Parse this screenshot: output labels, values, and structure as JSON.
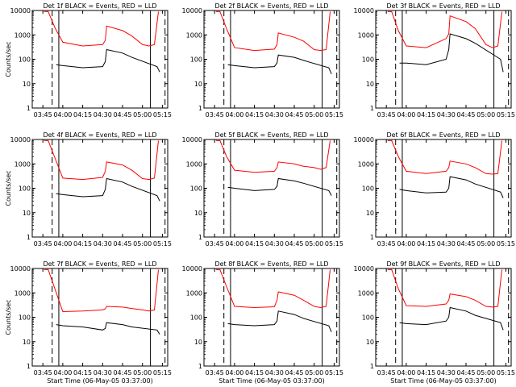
{
  "chart_data": [
    {
      "type": "line",
      "title": "Det 1f BLACK = Events, RED = LLD",
      "xlabel": "",
      "ylabel": "Counts/sec",
      "yscale": "log",
      "ylim": [
        1,
        10000
      ],
      "xtick_labels": [
        "03:45",
        "04:00",
        "04:15",
        "04:30",
        "04:45",
        "05:00",
        "05:15"
      ],
      "series": [
        {
          "color": "#ff0000",
          "x": [
            "03:46",
            "03:49",
            "03:54",
            "04:00",
            "04:15",
            "04:30",
            "04:32",
            "04:33",
            "04:45",
            "04:52",
            "05:00",
            "05:05",
            "05:09",
            "05:12"
          ],
          "y": [
            9000,
            9000,
            2000,
            500,
            350,
            400,
            600,
            2300,
            1500,
            900,
            400,
            350,
            400,
            9000
          ]
        },
        {
          "color": "#000000",
          "x": [
            "03:55",
            "04:00",
            "04:15",
            "04:30",
            "04:32",
            "04:33",
            "04:45",
            "04:52",
            "05:11",
            "05:13"
          ],
          "y": [
            60,
            55,
            45,
            50,
            80,
            250,
            180,
            120,
            50,
            30
          ]
        }
      ]
    },
    {
      "type": "line",
      "title": "Det 2f BLACK = Events, RED = LLD",
      "xlabel": "",
      "ylabel": "",
      "yscale": "log",
      "ylim": [
        1,
        10000
      ],
      "xtick_labels": [
        "03:45",
        "04:00",
        "04:15",
        "04:30",
        "04:45",
        "05:00",
        "05:15"
      ],
      "series": [
        {
          "color": "#ff0000",
          "x": [
            "03:46",
            "03:49",
            "03:54",
            "04:00",
            "04:15",
            "04:30",
            "04:32",
            "04:33",
            "04:45",
            "04:52",
            "05:00",
            "05:05",
            "05:09",
            "05:12"
          ],
          "y": [
            9000,
            9000,
            1800,
            300,
            230,
            260,
            400,
            1200,
            800,
            550,
            250,
            230,
            250,
            9000
          ]
        },
        {
          "color": "#000000",
          "x": [
            "03:55",
            "04:00",
            "04:15",
            "04:30",
            "04:32",
            "04:33",
            "04:45",
            "04:52",
            "05:11",
            "05:13"
          ],
          "y": [
            60,
            55,
            45,
            50,
            70,
            150,
            120,
            90,
            45,
            25
          ]
        }
      ]
    },
    {
      "type": "line",
      "title": "Det 3f BLACK = Events, RED = LLD",
      "xlabel": "",
      "ylabel": "",
      "yscale": "log",
      "ylim": [
        1,
        10000
      ],
      "xtick_labels": [
        "03:45",
        "04:00",
        "04:15",
        "04:30",
        "04:45",
        "05:00",
        "05:15"
      ],
      "series": [
        {
          "color": "#ff0000",
          "x": [
            "03:46",
            "03:49",
            "03:54",
            "04:00",
            "04:15",
            "04:30",
            "04:32",
            "04:33",
            "04:45",
            "04:52",
            "05:00",
            "05:05",
            "05:09",
            "05:12"
          ],
          "y": [
            9000,
            9000,
            1500,
            350,
            300,
            700,
            1100,
            6000,
            3500,
            1800,
            400,
            300,
            350,
            9000
          ]
        },
        {
          "color": "#000000",
          "x": [
            "03:55",
            "04:00",
            "04:15",
            "04:30",
            "04:32",
            "04:33",
            "04:45",
            "04:52",
            "05:11",
            "05:13"
          ],
          "y": [
            70,
            70,
            60,
            100,
            250,
            1100,
            700,
            450,
            100,
            30
          ]
        }
      ]
    },
    {
      "type": "line",
      "title": "Det 4f BLACK = Events, RED = LLD",
      "xlabel": "",
      "ylabel": "Counts/sec",
      "yscale": "log",
      "ylim": [
        1,
        10000
      ],
      "xtick_labels": [
        "03:45",
        "04:00",
        "04:15",
        "04:30",
        "04:45",
        "05:00",
        "05:15"
      ],
      "series": [
        {
          "color": "#ff0000",
          "x": [
            "03:46",
            "03:49",
            "03:54",
            "04:00",
            "04:15",
            "04:30",
            "04:32",
            "04:33",
            "04:45",
            "04:52",
            "05:00",
            "05:05",
            "05:09",
            "05:12"
          ],
          "y": [
            9000,
            9000,
            1800,
            260,
            230,
            280,
            500,
            1200,
            900,
            550,
            250,
            230,
            260,
            9000
          ]
        },
        {
          "color": "#000000",
          "x": [
            "03:55",
            "04:00",
            "04:15",
            "04:30",
            "04:32",
            "04:33",
            "04:45",
            "04:52",
            "05:11",
            "05:13"
          ],
          "y": [
            60,
            55,
            45,
            50,
            90,
            250,
            180,
            120,
            50,
            30
          ]
        }
      ]
    },
    {
      "type": "line",
      "title": "Det 5f BLACK = Events, RED = LLD",
      "xlabel": "",
      "ylabel": "",
      "yscale": "log",
      "ylim": [
        1,
        10000
      ],
      "xtick_labels": [
        "03:45",
        "04:00",
        "04:15",
        "04:30",
        "04:45",
        "05:00",
        "05:15"
      ],
      "series": [
        {
          "color": "#ff0000",
          "x": [
            "03:46",
            "03:49",
            "03:54",
            "04:00",
            "04:15",
            "04:30",
            "04:32",
            "04:33",
            "04:45",
            "04:52",
            "05:00",
            "05:05",
            "05:09",
            "05:12"
          ],
          "y": [
            9000,
            9000,
            2000,
            550,
            450,
            500,
            700,
            1200,
            1000,
            800,
            700,
            600,
            700,
            9000
          ]
        },
        {
          "color": "#000000",
          "x": [
            "03:55",
            "04:00",
            "04:15",
            "04:30",
            "04:32",
            "04:33",
            "04:45",
            "04:52",
            "05:11",
            "05:13"
          ],
          "y": [
            110,
            100,
            80,
            90,
            120,
            250,
            200,
            160,
            80,
            50
          ]
        }
      ]
    },
    {
      "type": "line",
      "title": "Det 6f BLACK = Events, RED = LLD",
      "xlabel": "",
      "ylabel": "",
      "yscale": "log",
      "ylim": [
        1,
        10000
      ],
      "xtick_labels": [
        "03:45",
        "04:00",
        "04:15",
        "04:30",
        "04:45",
        "05:00",
        "05:15"
      ],
      "series": [
        {
          "color": "#ff0000",
          "x": [
            "03:46",
            "03:49",
            "03:54",
            "04:00",
            "04:15",
            "04:30",
            "04:32",
            "04:33",
            "04:45",
            "04:52",
            "05:00",
            "05:05",
            "05:09",
            "05:12"
          ],
          "y": [
            9000,
            9000,
            2000,
            500,
            400,
            500,
            700,
            1300,
            1000,
            700,
            400,
            380,
            400,
            9000
          ]
        },
        {
          "color": "#000000",
          "x": [
            "03:55",
            "04:00",
            "04:15",
            "04:30",
            "04:32",
            "04:33",
            "04:45",
            "04:52",
            "05:11",
            "05:13"
          ],
          "y": [
            90,
            80,
            65,
            70,
            100,
            300,
            220,
            150,
            70,
            40
          ]
        }
      ]
    },
    {
      "type": "line",
      "title": "Det 7f BLACK = Events, RED = LLD",
      "xlabel": "Start Time (06-May-05 03:37:00)",
      "ylabel": "Counts/sec",
      "yscale": "log",
      "ylim": [
        1,
        10000
      ],
      "xtick_labels": [
        "03:45",
        "04:00",
        "04:15",
        "04:30",
        "04:45",
        "05:00",
        "05:15"
      ],
      "series": [
        {
          "color": "#ff0000",
          "x": [
            "03:46",
            "03:49",
            "03:54",
            "04:00",
            "04:15",
            "04:30",
            "04:32",
            "04:33",
            "04:45",
            "04:52",
            "05:00",
            "05:05",
            "05:09",
            "05:12"
          ],
          "y": [
            9000,
            9000,
            1500,
            170,
            180,
            200,
            220,
            280,
            260,
            230,
            200,
            180,
            200,
            9000
          ]
        },
        {
          "color": "#000000",
          "x": [
            "03:55",
            "04:00",
            "04:15",
            "04:30",
            "04:32",
            "04:33",
            "04:45",
            "04:52",
            "05:11",
            "05:13"
          ],
          "y": [
            50,
            45,
            40,
            30,
            35,
            60,
            50,
            40,
            30,
            20
          ]
        }
      ]
    },
    {
      "type": "line",
      "title": "Det 8f BLACK = Events, RED = LLD",
      "xlabel": "Start Time (06-May-05 03:37:00)",
      "ylabel": "",
      "yscale": "log",
      "ylim": [
        1,
        10000
      ],
      "xtick_labels": [
        "03:45",
        "04:00",
        "04:15",
        "04:30",
        "04:45",
        "05:00",
        "05:15"
      ],
      "series": [
        {
          "color": "#ff0000",
          "x": [
            "03:46",
            "03:49",
            "03:54",
            "04:00",
            "04:15",
            "04:30",
            "04:32",
            "04:33",
            "04:45",
            "04:52",
            "05:00",
            "05:05",
            "05:09",
            "05:12"
          ],
          "y": [
            9000,
            9000,
            1800,
            280,
            250,
            270,
            500,
            1100,
            800,
            500,
            280,
            250,
            280,
            9000
          ]
        },
        {
          "color": "#000000",
          "x": [
            "03:55",
            "04:00",
            "04:15",
            "04:30",
            "04:32",
            "04:33",
            "04:45",
            "04:52",
            "05:11",
            "05:13"
          ],
          "y": [
            55,
            50,
            45,
            50,
            70,
            180,
            130,
            90,
            45,
            25
          ]
        }
      ]
    },
    {
      "type": "line",
      "title": "Det 9f BLACK = Events, RED = LLD",
      "xlabel": "Start Time (06-May-05 03:37:00)",
      "ylabel": "",
      "yscale": "log",
      "ylim": [
        1,
        10000
      ],
      "xtick_labels": [
        "03:45",
        "04:00",
        "04:15",
        "04:30",
        "04:45",
        "05:00",
        "05:15"
      ],
      "series": [
        {
          "color": "#ff0000",
          "x": [
            "03:46",
            "03:49",
            "03:54",
            "04:00",
            "04:15",
            "04:30",
            "04:32",
            "04:33",
            "04:45",
            "04:52",
            "05:00",
            "05:05",
            "05:09",
            "05:12"
          ],
          "y": [
            9000,
            9000,
            1500,
            300,
            280,
            350,
            500,
            900,
            700,
            500,
            280,
            260,
            280,
            9000
          ]
        },
        {
          "color": "#000000",
          "x": [
            "03:55",
            "04:00",
            "04:15",
            "04:30",
            "04:32",
            "04:33",
            "04:45",
            "04:52",
            "05:11",
            "05:13"
          ],
          "y": [
            60,
            55,
            50,
            70,
            100,
            250,
            180,
            120,
            60,
            30
          ]
        }
      ]
    }
  ]
}
